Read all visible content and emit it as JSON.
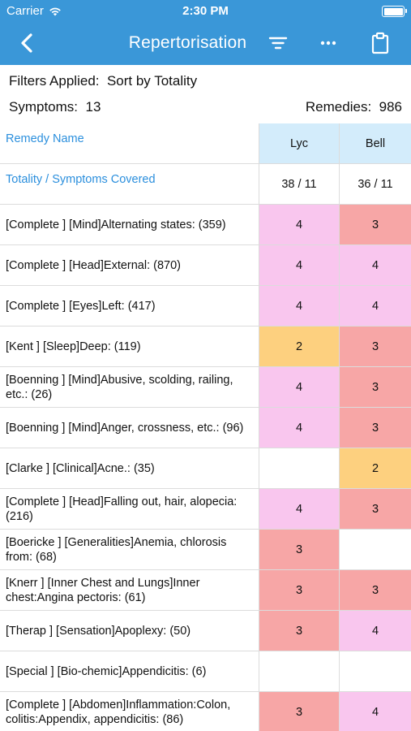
{
  "status_bar": {
    "carrier": "Carrier",
    "time": "2:30 PM"
  },
  "nav": {
    "title": "Repertorisation"
  },
  "filters": {
    "label": "Filters Applied:",
    "value": "Sort by Totality"
  },
  "counts": {
    "symptoms_label": "Symptoms:",
    "symptoms_value": "13",
    "remedies_label": "Remedies:",
    "remedies_value": "986"
  },
  "table": {
    "header_label": "Remedy Name",
    "totality_label": "Totality / Symptoms Covered",
    "remedies": [
      {
        "name": "Lyc",
        "totality": "38 / 11"
      },
      {
        "name": "Bell",
        "totality": "36 / 11"
      }
    ],
    "rows": [
      {
        "symptom": "[Complete ] [Mind]Alternating states: (359)",
        "values": [
          "4",
          "3"
        ],
        "colors": [
          "#f9c6ee",
          "#f7a6a6"
        ]
      },
      {
        "symptom": "[Complete ] [Head]External: (870)",
        "values": [
          "4",
          "4"
        ],
        "colors": [
          "#f9c6ee",
          "#f9c6ee"
        ]
      },
      {
        "symptom": "[Complete ] [Eyes]Left: (417)",
        "values": [
          "4",
          "4"
        ],
        "colors": [
          "#f9c6ee",
          "#f9c6ee"
        ]
      },
      {
        "symptom": "[Kent ] [Sleep]Deep: (119)",
        "values": [
          "2",
          "3"
        ],
        "colors": [
          "#fdd07f",
          "#f7a6a6"
        ]
      },
      {
        "symptom": "[Boenning ] [Mind]Abusive, scolding, railing, etc.: (26)",
        "values": [
          "4",
          "3"
        ],
        "colors": [
          "#f9c6ee",
          "#f7a6a6"
        ]
      },
      {
        "symptom": "[Boenning ] [Mind]Anger, crossness, etc.: (96)",
        "values": [
          "4",
          "3"
        ],
        "colors": [
          "#f9c6ee",
          "#f7a6a6"
        ]
      },
      {
        "symptom": "[Clarke ] [Clinical]Acne.: (35)",
        "values": [
          "",
          "2"
        ],
        "colors": [
          "#ffffff",
          "#fdd07f"
        ]
      },
      {
        "symptom": "[Complete ] [Head]Falling out, hair, alopecia: (216)",
        "values": [
          "4",
          "3"
        ],
        "colors": [
          "#f9c6ee",
          "#f7a6a6"
        ]
      },
      {
        "symptom": "[Boericke ] [Generalities]Anemia, chlorosis from: (68)",
        "values": [
          "3",
          ""
        ],
        "colors": [
          "#f7a6a6",
          "#ffffff"
        ]
      },
      {
        "symptom": "[Knerr ] [Inner Chest and Lungs]Inner chest:Angina pectoris: (61)",
        "values": [
          "3",
          "3"
        ],
        "colors": [
          "#f7a6a6",
          "#f7a6a6"
        ]
      },
      {
        "symptom": "[Therap ] [Sensation]Apoplexy: (50)",
        "values": [
          "3",
          "4"
        ],
        "colors": [
          "#f7a6a6",
          "#f9c6ee"
        ]
      },
      {
        "symptom": "[Special ] [Bio-chemic]Appendicitis: (6)",
        "values": [
          "",
          ""
        ],
        "colors": [
          "#ffffff",
          "#ffffff"
        ]
      },
      {
        "symptom": "[Complete ] [Abdomen]Inflammation:Colon, colitis:Appendix, appendicitis: (86)",
        "values": [
          "3",
          "4"
        ],
        "colors": [
          "#f7a6a6",
          "#f9c6ee"
        ]
      }
    ]
  }
}
